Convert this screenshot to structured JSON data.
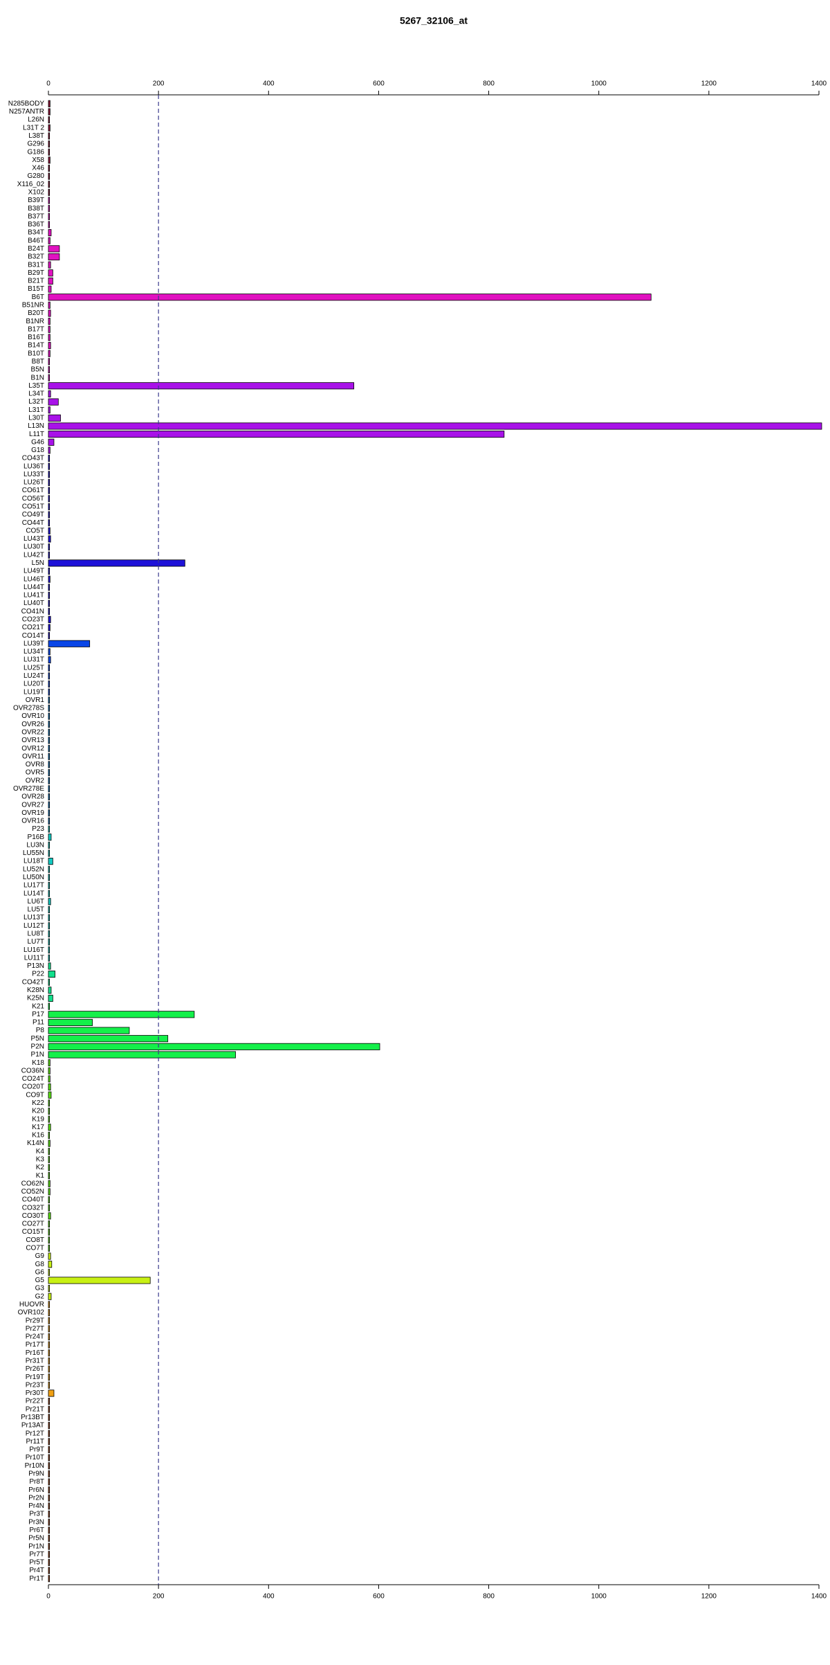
{
  "chart_data": {
    "type": "barh",
    "title": "5267_32106_at",
    "categories": [
      "N285BODY",
      "N257ANTR",
      "L26N",
      "L31T 2",
      "L38T",
      "G296",
      "G186",
      "X58",
      "X46",
      "G280",
      "X116_02",
      "X102",
      "B39T",
      "B38T",
      "B37T",
      "B36T",
      "B34T",
      "B46T",
      "B24T",
      "B32T",
      "B31T",
      "B29T",
      "B21T",
      "B15T",
      "B6T",
      "B51NR",
      "B20T",
      "B1NR",
      "B17T",
      "B16T",
      "B14T",
      "B10T",
      "B8T",
      "B5N",
      "B1N",
      "L35T",
      "L34T",
      "L32T",
      "L31T",
      "L30T",
      "L13N",
      "L11T",
      "G46",
      "G18",
      "CO43T",
      "LU36T",
      "LU33T",
      "LU26T",
      "CO61T",
      "CO56T",
      "CO51T",
      "CO49T",
      "CO44T",
      "CO5T",
      "LU43T",
      "LU30T",
      "LU42T",
      "L5N",
      "LU49T",
      "LU46T",
      "LU44T",
      "LU41T",
      "LU40T",
      "CO41N",
      "CO23T",
      "CO21T",
      "CO14T",
      "LU39T",
      "LU34T",
      "LU31T",
      "LU25T",
      "LU24T",
      "LU20T",
      "LU19T",
      "OVR1",
      "OVR278S",
      "OVR10",
      "OVR26",
      "OVR22",
      "OVR13",
      "OVR12",
      "OVR11",
      "OVR8",
      "OVR5",
      "OVR2",
      "OVR278E",
      "OVR28",
      "OVR27",
      "OVR19",
      "OVR16",
      "P23",
      "P16B",
      "LU3N",
      "LU55N",
      "LU18T",
      "LU52N",
      "LU50N",
      "LU17T",
      "LU14T",
      "LU6T",
      "LU5T",
      "LU13T",
      "LU12T",
      "LU8T",
      "LU7T",
      "LU16T",
      "LU11T",
      "P13N",
      "P22",
      "CO42T",
      "K28N",
      "K25N",
      "K21",
      "P17",
      "P11",
      "P8",
      "P5N",
      "P2N",
      "P1N",
      "K18",
      "CO36N",
      "CO24T",
      "CO20T",
      "CO9T",
      "K22",
      "K20",
      "K19",
      "K17",
      "K16",
      "K14N",
      "K4",
      "K3",
      "K2",
      "K1",
      "CO62N",
      "CO52N",
      "CO40T",
      "CO32T",
      "CO30T",
      "CO27T",
      "CO15T",
      "CO8T",
      "CO7T",
      "G9",
      "G8",
      "G6",
      "G5",
      "G3",
      "G2",
      "HUOVR",
      "OVR102",
      "Pr29T",
      "Pr27T",
      "Pr24T",
      "Pr17T",
      "Pr16T",
      "Pr31T",
      "Pr26T",
      "Pr19T",
      "Pr23T",
      "Pr30T",
      "Pr22T",
      "Pr21T",
      "Pr13BT",
      "Pr13AT",
      "Pr12T",
      "Pr11T",
      "Pr9T",
      "Pr10T",
      "Pr10N",
      "Pr9N",
      "Pr8T",
      "Pr6N",
      "Pr2N",
      "Pr4N",
      "Pr3T",
      "Pr3N",
      "Pr6T",
      "Pr5N",
      "Pr1N",
      "Pr7T",
      "Pr5T",
      "Pr4T",
      "Pr1T"
    ],
    "values": [
      3,
      3,
      2,
      3,
      2,
      2,
      2,
      3,
      2,
      2,
      2,
      2,
      2,
      2,
      2,
      2,
      5,
      3,
      20,
      20,
      4,
      8,
      8,
      5,
      1095,
      3,
      4,
      3,
      3,
      3,
      4,
      3,
      2,
      2,
      2,
      555,
      4,
      18,
      3,
      22,
      1405,
      828,
      10,
      3,
      2,
      2,
      2,
      2,
      2,
      2,
      2,
      2,
      2,
      3,
      4,
      2,
      2,
      248,
      2,
      3,
      2,
      2,
      2,
      2,
      4,
      3,
      2,
      75,
      3,
      4,
      2,
      2,
      2,
      2,
      2,
      2,
      2,
      2,
      2,
      2,
      2,
      2,
      2,
      2,
      2,
      2,
      2,
      2,
      2,
      2,
      2,
      5,
      2,
      2,
      8,
      2,
      2,
      2,
      2,
      4,
      2,
      2,
      2,
      2,
      2,
      2,
      2,
      4,
      12,
      2,
      5,
      8,
      2,
      265,
      80,
      147,
      217,
      602,
      340,
      3,
      3,
      3,
      4,
      5,
      2,
      2,
      2,
      4,
      2,
      3,
      2,
      2,
      2,
      2,
      3,
      3,
      2,
      2,
      4,
      2,
      2,
      2,
      2,
      4,
      6,
      2,
      185,
      2,
      5,
      2,
      2,
      2,
      2,
      2,
      2,
      2,
      2,
      2,
      2,
      2,
      10,
      2,
      2,
      2,
      2,
      2,
      2,
      2,
      2,
      2,
      2,
      2,
      2,
      2,
      2,
      2,
      2,
      2,
      2,
      2,
      2,
      2,
      2,
      2
    ],
    "colors": [
      "#8b1538",
      "#8b1538",
      "#8b1538",
      "#8b1538",
      "#8b1538",
      "#8b1538",
      "#8b1538",
      "#8b1538",
      "#8b1538",
      "#8b1538",
      "#8b1538",
      "#8b1538",
      "#e012c0",
      "#e012c0",
      "#e012c0",
      "#e012c0",
      "#e012c0",
      "#e012c0",
      "#e012c0",
      "#e012c0",
      "#e012c0",
      "#e012c0",
      "#e012c0",
      "#e012c0",
      "#e012c0",
      "#e012c0",
      "#e012c0",
      "#e012c0",
      "#e012c0",
      "#e012c0",
      "#e012c0",
      "#e012c0",
      "#e012c0",
      "#e012c0",
      "#e012c0",
      "#a812e8",
      "#a812e8",
      "#a812e8",
      "#a812e8",
      "#a812e8",
      "#a812e8",
      "#a812e8",
      "#a812e8",
      "#a812e8",
      "#1e12d8",
      "#1e12d8",
      "#1e12d8",
      "#1e12d8",
      "#1e12d8",
      "#1e12d8",
      "#1e12d8",
      "#1e12d8",
      "#1e12d8",
      "#1e12d8",
      "#1e12d8",
      "#1e12d8",
      "#1e12d8",
      "#1e12d8",
      "#1e12d8",
      "#1e12d8",
      "#1e12d8",
      "#1e12d8",
      "#1e12d8",
      "#1e12d8",
      "#1e12d8",
      "#1e12d8",
      "#1e12d8",
      "#0a46e6",
      "#0a46e6",
      "#0a46e6",
      "#0a46e6",
      "#0a46e6",
      "#0a46e6",
      "#0a46e6",
      "#0a78c8",
      "#0a78c8",
      "#0a78c8",
      "#0a78c8",
      "#0a78c8",
      "#0a78c8",
      "#0a78c8",
      "#0a78c8",
      "#0a78c8",
      "#0a78c8",
      "#0a78c8",
      "#0a78c8",
      "#0a78c8",
      "#0a78c8",
      "#0a78c8",
      "#0a78c8",
      "#12c8c0",
      "#12c8c0",
      "#12c8c0",
      "#12c8c0",
      "#12c8c0",
      "#12c8c0",
      "#12c8c0",
      "#12c8c0",
      "#12c8c0",
      "#12c8c0",
      "#12c8c0",
      "#12c8c0",
      "#12c8c0",
      "#12c8c0",
      "#12c8c0",
      "#12c8c0",
      "#12c8c0",
      "#12e08c",
      "#12e08c",
      "#12e08c",
      "#12e08c",
      "#12e08c",
      "#14f04a",
      "#14f04a",
      "#14f04a",
      "#14f04a",
      "#14f04a",
      "#14f04a",
      "#14f04a",
      "#5ae014",
      "#5ae014",
      "#5ae014",
      "#5ae014",
      "#5ae014",
      "#5ae014",
      "#5ae014",
      "#5ae014",
      "#5ae014",
      "#5ae014",
      "#5ae014",
      "#5ae014",
      "#5ae014",
      "#5ae014",
      "#5ae014",
      "#5ae014",
      "#5ae014",
      "#5ae014",
      "#5ae014",
      "#5ae014",
      "#5ae014",
      "#5ae014",
      "#5ae014",
      "#5ae014",
      "#c8f014",
      "#c8f014",
      "#c8f014",
      "#c8f014",
      "#c8f014",
      "#c8f014",
      "#f0a014",
      "#f0a014",
      "#f0a014",
      "#f0a014",
      "#f0a014",
      "#f0a014",
      "#f0a014",
      "#f0a014",
      "#f0a014",
      "#f0a014",
      "#f0a014",
      "#f0a014",
      "#a0461e",
      "#a0461e",
      "#a0461e",
      "#a0461e",
      "#a0461e",
      "#a0461e",
      "#a0461e",
      "#a0461e",
      "#a0461e",
      "#a0461e",
      "#a0461e",
      "#a0461e",
      "#a0461e",
      "#a0461e",
      "#a0461e",
      "#a0461e",
      "#a0461e",
      "#a0461e",
      "#a0461e",
      "#a0461e",
      "#a0461e",
      "#a0461e",
      "#a0461e"
    ],
    "xlim": [
      0,
      1400
    ],
    "xticks": [
      0,
      200,
      400,
      600,
      800,
      1000,
      1200,
      1400
    ],
    "reference_line": 200,
    "reference_color": "#3a3a8c"
  }
}
